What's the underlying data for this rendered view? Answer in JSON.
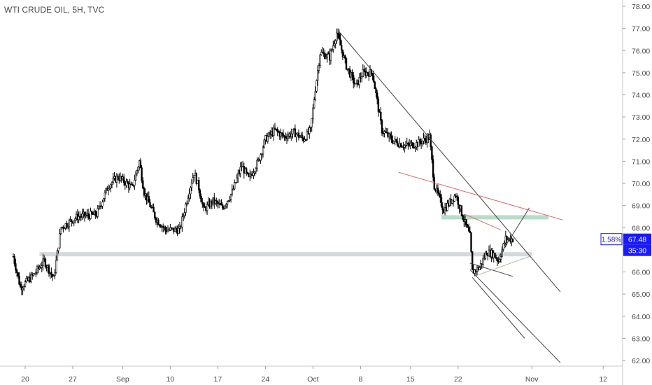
{
  "chart_data": {
    "type": "candlestick",
    "title": "WTI CRUDE OIL, 5H, TVC",
    "y_ticks": [
      "62.00",
      "63.00",
      "64.00",
      "65.00",
      "66.00",
      "67.00",
      "68.00",
      "69.00",
      "70.00",
      "71.00",
      "72.00",
      "73.00",
      "74.00",
      "75.00",
      "76.00",
      "77.00",
      "78.00"
    ],
    "ylim": [
      61.8,
      78.2
    ],
    "x_ticks": [
      {
        "label": "20",
        "index": 5
      },
      {
        "label": "27",
        "index": 25
      },
      {
        "label": "Sep",
        "index": 46
      },
      {
        "label": "10",
        "index": 66
      },
      {
        "label": "17",
        "index": 86
      },
      {
        "label": "24",
        "index": 106
      },
      {
        "label": "Oct",
        "index": 126
      },
      {
        "label": "8",
        "index": 146
      },
      {
        "label": "15",
        "index": 167
      },
      {
        "label": "22",
        "index": 187
      },
      {
        "label": "Nov",
        "index": 218
      },
      {
        "label": "12",
        "index": 248
      }
    ],
    "price_path": [
      [
        0,
        66.7
      ],
      [
        3,
        65.3
      ],
      [
        8,
        65.8
      ],
      [
        13,
        66.5
      ],
      [
        17,
        65.7
      ],
      [
        20,
        68.0
      ],
      [
        27,
        68.5
      ],
      [
        35,
        68.6
      ],
      [
        40,
        69.9
      ],
      [
        44,
        70.3
      ],
      [
        50,
        69.8
      ],
      [
        53,
        71.0
      ],
      [
        55,
        69.6
      ],
      [
        60,
        68.4
      ],
      [
        64,
        67.9
      ],
      [
        70,
        67.9
      ],
      [
        74,
        69.7
      ],
      [
        76,
        70.5
      ],
      [
        78,
        69.8
      ],
      [
        80,
        68.8
      ],
      [
        84,
        69.2
      ],
      [
        88,
        68.9
      ],
      [
        92,
        69.6
      ],
      [
        96,
        70.8
      ],
      [
        99,
        70.2
      ],
      [
        103,
        71.0
      ],
      [
        106,
        72.0
      ],
      [
        110,
        72.4
      ],
      [
        114,
        72.1
      ],
      [
        118,
        72.3
      ],
      [
        122,
        72.0
      ],
      [
        125,
        72.4
      ],
      [
        127,
        74.3
      ],
      [
        129,
        75.9
      ],
      [
        133,
        75.7
      ],
      [
        136,
        76.8
      ],
      [
        140,
        75.3
      ],
      [
        144,
        74.4
      ],
      [
        147,
        75.0
      ],
      [
        151,
        75.0
      ],
      [
        155,
        72.4
      ],
      [
        160,
        71.9
      ],
      [
        165,
        71.7
      ],
      [
        170,
        71.8
      ],
      [
        175,
        72.1
      ],
      [
        177,
        69.9
      ],
      [
        181,
        68.8
      ],
      [
        186,
        69.5
      ],
      [
        189,
        68.5
      ],
      [
        192,
        67.6
      ],
      [
        193,
        66.0
      ],
      [
        196,
        66.2
      ],
      [
        199,
        66.9
      ],
      [
        202,
        66.8
      ],
      [
        204,
        66.5
      ],
      [
        207,
        67.5
      ],
      [
        210,
        67.48
      ]
    ],
    "channel_lines": [
      {
        "from": [
          137,
          76.85
        ],
        "to": [
          230,
          65.1
        ],
        "color": "#444444"
      },
      {
        "from": [
          193,
          65.75
        ],
        "to": [
          215,
          63.0
        ],
        "color": "#444444"
      },
      {
        "from": [
          192,
          66.1
        ],
        "to": [
          230,
          61.9
        ],
        "color": "#444444"
      },
      {
        "from": [
          192,
          66.4
        ],
        "to": [
          210,
          65.8
        ],
        "color": "#444444"
      },
      {
        "from": [
          203,
          66.5
        ],
        "to": [
          217,
          68.9
        ],
        "color": "#444444"
      },
      {
        "from": [
          162,
          70.5
        ],
        "to": [
          231,
          68.35
        ],
        "color": "#e06666"
      },
      {
        "from": [
          190,
          68.6
        ],
        "to": [
          205,
          67.9
        ],
        "color": "#e06666"
      },
      {
        "from": [
          195,
          65.85
        ],
        "to": [
          217,
          66.7
        ],
        "color": "#9ec99a"
      }
    ],
    "zones": [
      {
        "from_index": 11,
        "to_index": 218,
        "level": 66.8,
        "color": "#d4d9dc"
      },
      {
        "from_index": 180,
        "to_index": 225,
        "level": 68.47,
        "color": "#b7dcc8"
      }
    ],
    "last_price": "67.48",
    "change_percent": "1.58%",
    "countdown": "35:30",
    "accent_color": "#1a1aff"
  }
}
